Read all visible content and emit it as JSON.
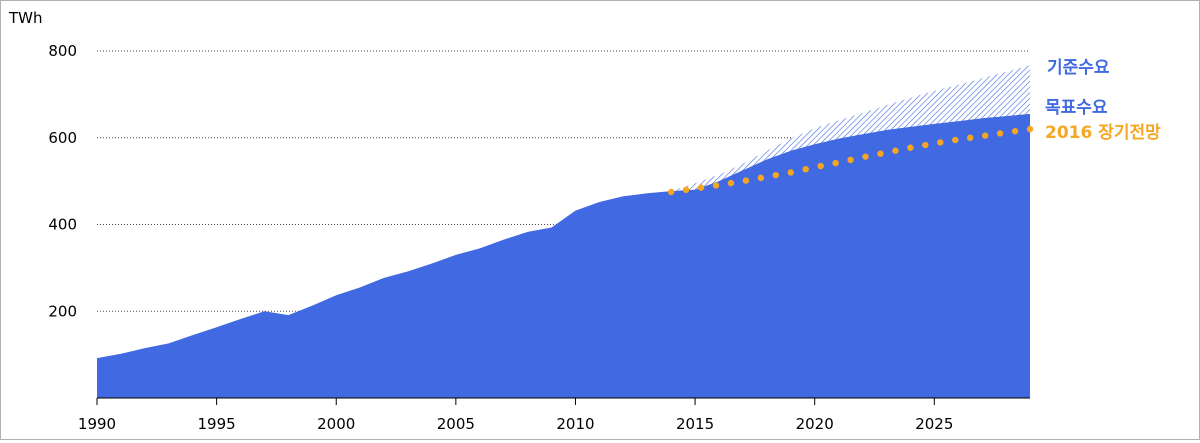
{
  "chart_data": {
    "type": "area",
    "unit_label": "TWh",
    "x": [
      1990,
      1991,
      1992,
      1993,
      1994,
      1995,
      1996,
      1997,
      1998,
      1999,
      2000,
      2001,
      2002,
      2003,
      2004,
      2005,
      2006,
      2007,
      2008,
      2009,
      2010,
      2011,
      2012,
      2013,
      2014,
      2015,
      2016,
      2017,
      2018,
      2019,
      2020,
      2021,
      2022,
      2023,
      2024,
      2025,
      2026,
      2027,
      2028,
      2029
    ],
    "xlim": [
      1990,
      2029
    ],
    "ylim": [
      0,
      800
    ],
    "x_ticks": [
      1990,
      1995,
      2000,
      2005,
      2010,
      2015,
      2020,
      2025
    ],
    "y_ticks": [
      200,
      400,
      600,
      800
    ],
    "grid": "horizontal dotted",
    "series": [
      {
        "name": "목표수요",
        "color": "#4169e1",
        "values": [
          92,
          102,
          115,
          126,
          145,
          163,
          182,
          200,
          191,
          213,
          237,
          255,
          277,
          292,
          310,
          330,
          345,
          365,
          383,
          393,
          432,
          452,
          465,
          472,
          477,
          480,
          500,
          525,
          550,
          570,
          585,
          598,
          608,
          618,
          625,
          632,
          638,
          645,
          650,
          655
        ]
      },
      {
        "name": "기준수요",
        "color": "#4169e1",
        "pattern": "hatch",
        "x": [
          2014,
          2015,
          2016,
          2017,
          2018,
          2019,
          2020,
          2021,
          2022,
          2023,
          2024,
          2025,
          2026,
          2027,
          2028,
          2029
        ],
        "values": [
          477,
          495,
          515,
          540,
          570,
          598,
          622,
          640,
          657,
          675,
          692,
          708,
          722,
          737,
          752,
          767
        ]
      },
      {
        "name": "2016 장기전망",
        "color": "#f5a623",
        "style": "dotted",
        "x": [
          2014,
          2015,
          2016,
          2017,
          2018,
          2019,
          2020,
          2021,
          2022,
          2023,
          2024,
          2025,
          2026,
          2027,
          2028,
          2029
        ],
        "values": [
          475,
          483,
          491,
          500,
          510,
          520,
          532,
          543,
          555,
          566,
          577,
          587,
          596,
          604,
          612,
          620
        ]
      }
    ]
  }
}
